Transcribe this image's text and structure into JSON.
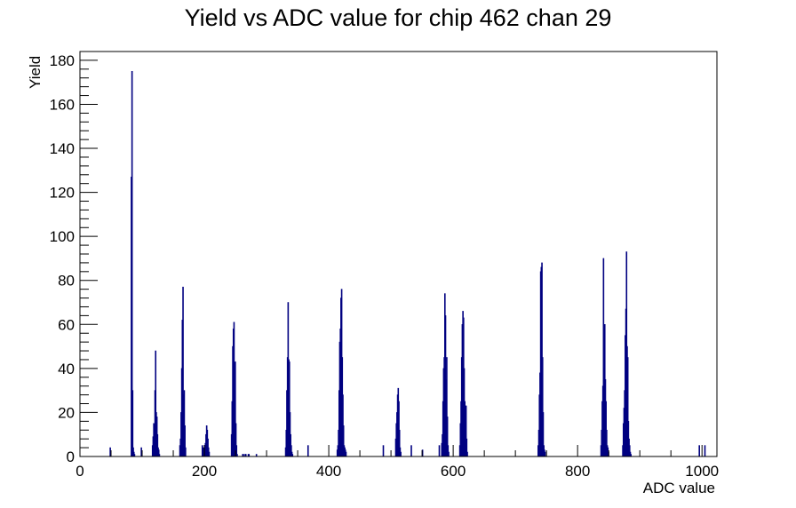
{
  "chart_data": {
    "type": "bar",
    "title": "Yield vs ADC value for chip 462 chan 29",
    "xlabel": "ADC value",
    "ylabel": "Yield",
    "xlim": [
      0,
      1024
    ],
    "ylim": [
      0,
      184
    ],
    "x_ticks": [
      0,
      200,
      400,
      600,
      800,
      1000
    ],
    "y_ticks": [
      0,
      20,
      40,
      60,
      80,
      100,
      120,
      140,
      160,
      180
    ],
    "grid": false,
    "legend": "none",
    "bar_color": "#000080",
    "series": [
      {
        "x": [
          48,
          82,
          83,
          84,
          85,
          86,
          87,
          98,
          116,
          117,
          118,
          119,
          120,
          121,
          122,
          123,
          124,
          125,
          126,
          127,
          160,
          161,
          162,
          163,
          164,
          165,
          166,
          167,
          168,
          169,
          196,
          198,
          200,
          201,
          202,
          203,
          204,
          205,
          206,
          207,
          243,
          244,
          245,
          246,
          247,
          248,
          249,
          250,
          251,
          252,
          261,
          262,
          265,
          266,
          270,
          271,
          283,
          330,
          331,
          332,
          333,
          334,
          335,
          336,
          337,
          338,
          339,
          340,
          341,
          366,
          413,
          414,
          415,
          416,
          417,
          418,
          419,
          420,
          421,
          422,
          423,
          424,
          425,
          426,
          427,
          487,
          507,
          508,
          509,
          510,
          511,
          512,
          513,
          514,
          515,
          532,
          550,
          577,
          581,
          582,
          583,
          584,
          585,
          586,
          587,
          588,
          589,
          590,
          591,
          592,
          610,
          611,
          612,
          613,
          614,
          615,
          616,
          617,
          618,
          619,
          620,
          621,
          622,
          736,
          737,
          738,
          739,
          740,
          741,
          742,
          743,
          744,
          745,
          746,
          747,
          837,
          838,
          839,
          840,
          841,
          842,
          843,
          844,
          845,
          846,
          847,
          848,
          849,
          872,
          873,
          874,
          875,
          876,
          877,
          878,
          879,
          880,
          881,
          882,
          883,
          884,
          885,
          995,
          1004
        ],
        "values": [
          4,
          127,
          175,
          30,
          4,
          2,
          1,
          4,
          5,
          9,
          15,
          14,
          30,
          48,
          20,
          18,
          10,
          4,
          3,
          1,
          5,
          8,
          20,
          40,
          62,
          77,
          28,
          30,
          14,
          4,
          5,
          4,
          2,
          6,
          10,
          14,
          12,
          8,
          4,
          2,
          10,
          25,
          50,
          58,
          61,
          30,
          43,
          15,
          5,
          1,
          1,
          1,
          1,
          1,
          1,
          1,
          1,
          4,
          12,
          30,
          45,
          70,
          44,
          43,
          20,
          10,
          5,
          2,
          1,
          5,
          3,
          5,
          12,
          30,
          52,
          58,
          72,
          76,
          45,
          28,
          14,
          5,
          4,
          3,
          2,
          5,
          8,
          15,
          20,
          28,
          31,
          25,
          12,
          4,
          2,
          5,
          3,
          5,
          6,
          10,
          25,
          40,
          45,
          74,
          64,
          35,
          45,
          18,
          5,
          2,
          5,
          15,
          25,
          45,
          60,
          66,
          63,
          40,
          25,
          23,
          23,
          8,
          2,
          5,
          12,
          28,
          38,
          84,
          86,
          88,
          45,
          20,
          5,
          3,
          2,
          5,
          12,
          25,
          32,
          90,
          40,
          60,
          35,
          25,
          12,
          5,
          4,
          2,
          5,
          15,
          22,
          30,
          55,
          67,
          93,
          50,
          45,
          16,
          8,
          5,
          2,
          1,
          5,
          5
        ]
      }
    ]
  }
}
